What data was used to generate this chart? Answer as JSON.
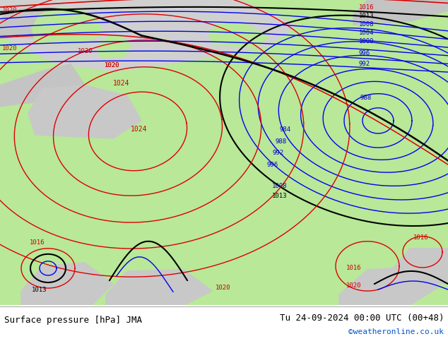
{
  "title_left": "Surface pressure [hPa] JMA",
  "title_right": "Tu 24-09-2024 00:00 UTC (00+48)",
  "credit": "©weatheronline.co.uk",
  "bg_color": "#ffffff",
  "land_green": "#b8e898",
  "land_gray": "#c8c8c8",
  "sea_top": "#d0d0d0",
  "contour_blue": "#0000ee",
  "contour_red": "#dd0000",
  "contour_black": "#000000",
  "label_blue": "#0000cc",
  "label_red": "#cc0000",
  "label_black": "#000000",
  "figsize": [
    6.34,
    4.9
  ],
  "dpi": 100
}
